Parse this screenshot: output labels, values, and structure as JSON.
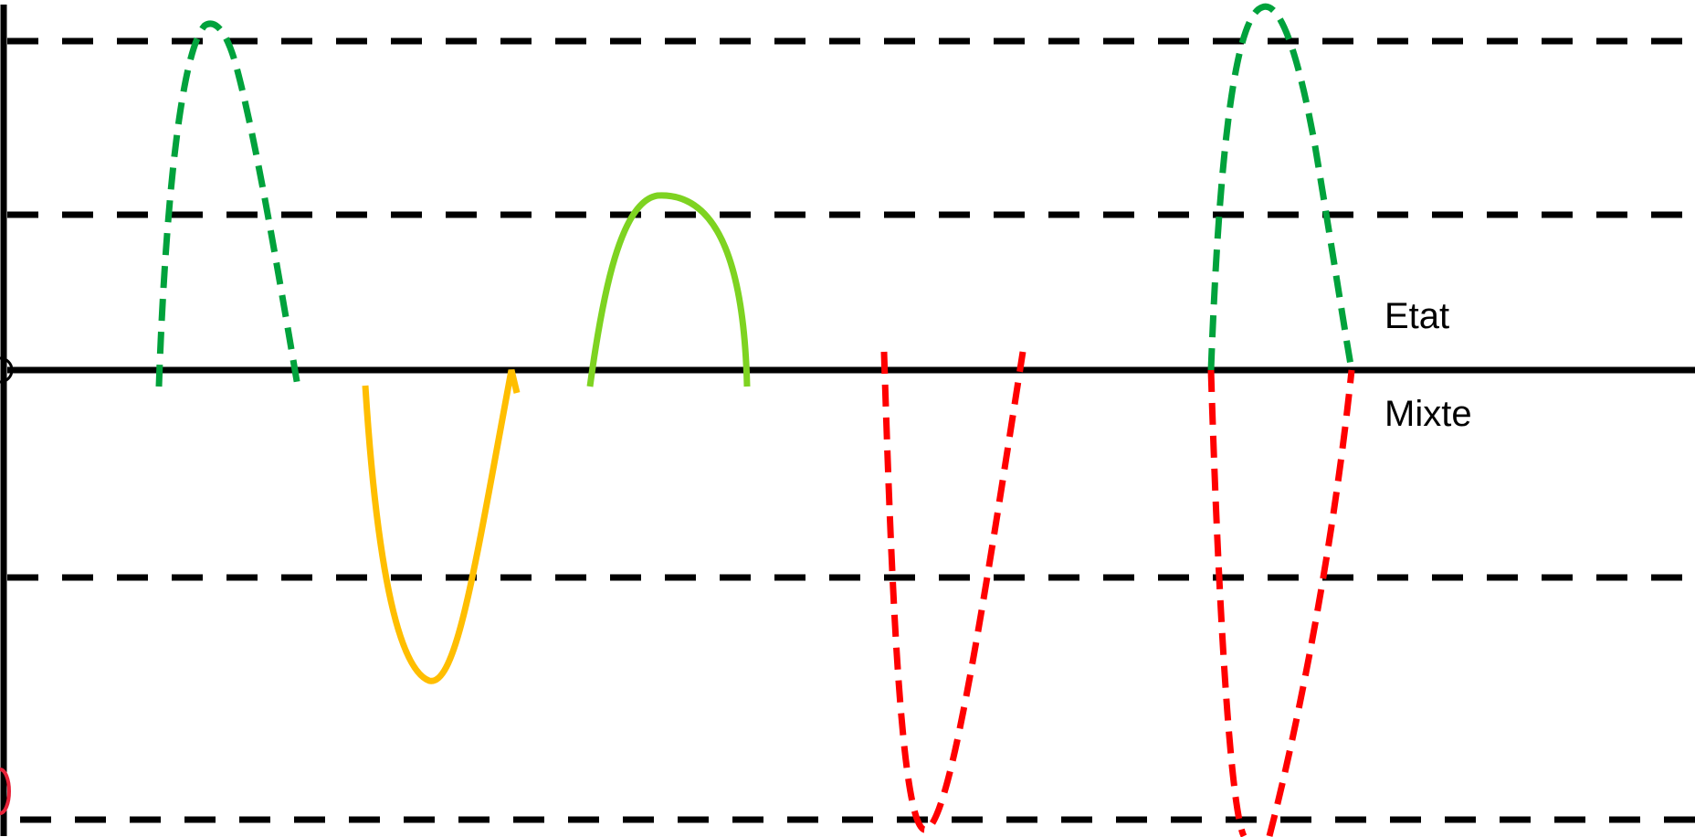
{
  "labels": {
    "etat": "Etat",
    "mixte": "Mixte"
  },
  "colors": {
    "line": "#000000",
    "dark_green": "#00a23c",
    "light_green": "#7ed321",
    "orange": "#ffbe00",
    "red": "#ff0000"
  }
}
